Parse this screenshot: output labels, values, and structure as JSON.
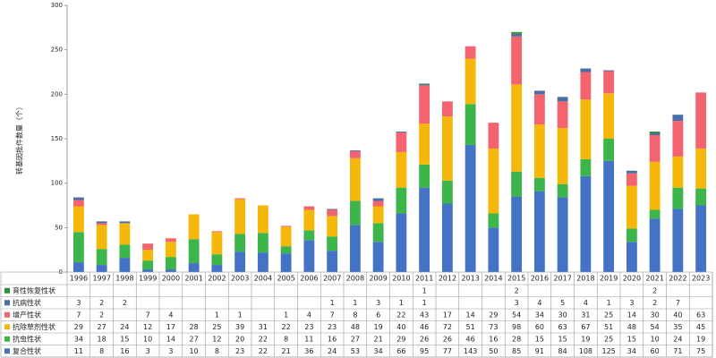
{
  "chart_data": {
    "type": "bar",
    "stacked": true,
    "y_label": "转基因批件数量（个）",
    "categories": [
      "1996",
      "1997",
      "1998",
      "1999",
      "2000",
      "2001",
      "2002",
      "2003",
      "2004",
      "2005",
      "2006",
      "2007",
      "2008",
      "2009",
      "2010",
      "2011",
      "2012",
      "2013",
      "2014",
      "2015",
      "2016",
      "2017",
      "2018",
      "2019",
      "2020",
      "2021",
      "2022",
      "2023"
    ],
    "series": [
      {
        "name": "育性恢复性状",
        "color": "#2e8b3a",
        "values": [
          null,
          null,
          null,
          null,
          null,
          null,
          null,
          null,
          null,
          null,
          null,
          null,
          null,
          null,
          null,
          1,
          null,
          null,
          null,
          2,
          null,
          null,
          null,
          null,
          null,
          2,
          null,
          null
        ]
      },
      {
        "name": "抗病性状",
        "color": "#4a6fa5",
        "values": [
          3,
          2,
          2,
          null,
          null,
          null,
          null,
          null,
          null,
          null,
          null,
          1,
          1,
          3,
          1,
          1,
          null,
          null,
          null,
          3,
          4,
          5,
          4,
          1,
          3,
          2,
          7,
          null
        ]
      },
      {
        "name": "增产性状",
        "color": "#f4646e",
        "values": [
          7,
          2,
          null,
          7,
          4,
          null,
          1,
          1,
          null,
          1,
          4,
          7,
          8,
          6,
          22,
          43,
          17,
          14,
          29,
          54,
          34,
          30,
          31,
          25,
          14,
          30,
          40,
          63
        ]
      },
      {
        "name": "抗除草剂性状",
        "color": "#f5b80a",
        "values": [
          29,
          27,
          24,
          12,
          17,
          28,
          25,
          39,
          31,
          22,
          23,
          23,
          48,
          19,
          40,
          46,
          72,
          51,
          73,
          98,
          60,
          63,
          67,
          51,
          48,
          54,
          35,
          45
        ]
      },
      {
        "name": "抗虫性状",
        "color": "#3cb54a",
        "values": [
          34,
          18,
          15,
          10,
          14,
          27,
          12,
          20,
          22,
          8,
          11,
          16,
          27,
          21,
          29,
          26,
          26,
          46,
          16,
          28,
          15,
          15,
          19,
          25,
          15,
          10,
          24,
          19
        ]
      },
      {
        "name": "复合性状",
        "color": "#4472c4",
        "values": [
          11,
          8,
          16,
          3,
          3,
          10,
          8,
          23,
          22,
          21,
          36,
          24,
          53,
          34,
          66,
          95,
          77,
          143,
          50,
          85,
          91,
          84,
          108,
          125,
          34,
          60,
          71,
          75
        ]
      }
    ],
    "ylim": [
      0,
      300
    ],
    "yticks": [
      0,
      50,
      100,
      150,
      200,
      250,
      300
    ],
    "grid": false
  }
}
